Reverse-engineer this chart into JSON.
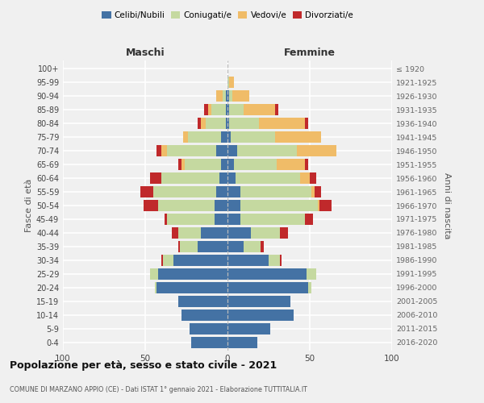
{
  "age_groups": [
    "0-4",
    "5-9",
    "10-14",
    "15-19",
    "20-24",
    "25-29",
    "30-34",
    "35-39",
    "40-44",
    "45-49",
    "50-54",
    "55-59",
    "60-64",
    "65-69",
    "70-74",
    "75-79",
    "80-84",
    "85-89",
    "90-94",
    "95-99",
    "100+"
  ],
  "birth_years": [
    "2016-2020",
    "2011-2015",
    "2006-2010",
    "2001-2005",
    "1996-2000",
    "1991-1995",
    "1986-1990",
    "1981-1985",
    "1976-1980",
    "1971-1975",
    "1966-1970",
    "1961-1965",
    "1956-1960",
    "1951-1955",
    "1946-1950",
    "1941-1945",
    "1936-1940",
    "1931-1935",
    "1926-1930",
    "1921-1925",
    "≤ 1920"
  ],
  "maschi": {
    "celibi": [
      22,
      23,
      28,
      30,
      43,
      42,
      33,
      18,
      16,
      8,
      8,
      7,
      5,
      4,
      7,
      4,
      1,
      1,
      1,
      0,
      0
    ],
    "coniugati": [
      0,
      0,
      0,
      0,
      1,
      5,
      6,
      11,
      14,
      29,
      34,
      38,
      35,
      22,
      30,
      20,
      12,
      9,
      2,
      0,
      0
    ],
    "vedovi": [
      0,
      0,
      0,
      0,
      0,
      0,
      0,
      0,
      0,
      0,
      0,
      0,
      0,
      2,
      3,
      3,
      3,
      2,
      4,
      0,
      0
    ],
    "divorziati": [
      0,
      0,
      0,
      0,
      0,
      0,
      1,
      1,
      4,
      1,
      9,
      8,
      7,
      2,
      3,
      0,
      2,
      2,
      0,
      0,
      0
    ]
  },
  "femmine": {
    "nubili": [
      18,
      26,
      40,
      38,
      49,
      48,
      25,
      10,
      14,
      8,
      8,
      8,
      5,
      4,
      6,
      2,
      1,
      1,
      1,
      0,
      0
    ],
    "coniugate": [
      0,
      0,
      0,
      0,
      2,
      6,
      7,
      10,
      18,
      39,
      47,
      43,
      39,
      26,
      36,
      27,
      18,
      9,
      2,
      1,
      0
    ],
    "vedove": [
      0,
      0,
      0,
      0,
      0,
      0,
      0,
      0,
      0,
      0,
      1,
      2,
      6,
      17,
      24,
      28,
      28,
      19,
      10,
      3,
      0
    ],
    "divorziate": [
      0,
      0,
      0,
      0,
      0,
      0,
      1,
      2,
      5,
      5,
      7,
      4,
      4,
      2,
      0,
      0,
      2,
      2,
      0,
      0,
      0
    ]
  },
  "colors": {
    "celibi": "#4472a4",
    "coniugati": "#c5d9a0",
    "vedovi": "#f0bc68",
    "divorziati": "#c0292b"
  },
  "xlim": 100,
  "title": "Popolazione per età, sesso e stato civile - 2021",
  "subtitle": "COMUNE DI MARZANO APPIO (CE) - Dati ISTAT 1° gennaio 2021 - Elaborazione TUTTITALIA.IT",
  "ylabel_left": "Fasce di età",
  "ylabel_right": "Anni di nascita",
  "xlabel_left": "Maschi",
  "xlabel_right": "Femmine",
  "bg_color": "#f0f0f0",
  "grid_color": "#ffffff"
}
